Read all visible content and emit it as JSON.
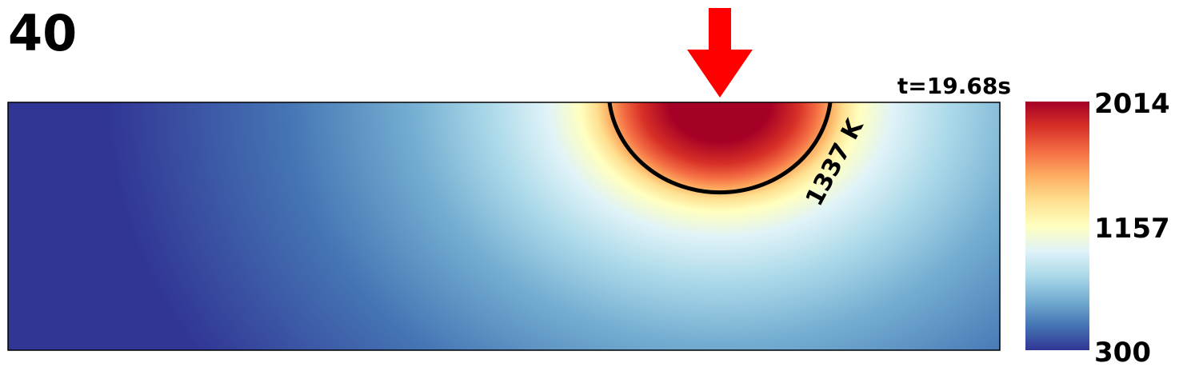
{
  "frame_number": "40",
  "time_label": "t=19.68s",
  "contour": {
    "label": "1337 K"
  },
  "colorbar": {
    "max_label": "2014",
    "mid_label": "1157",
    "min_label": "300",
    "stops": [
      "#a50026",
      "#d73027",
      "#f46d43",
      "#fdae61",
      "#fee090",
      "#ffffbf",
      "#e0f3f8",
      "#abd9e9",
      "#74add1",
      "#4575b4",
      "#313695"
    ]
  },
  "colors": {
    "arrow": "#ff0000",
    "contour": "#000000",
    "frame": "#000000"
  }
}
